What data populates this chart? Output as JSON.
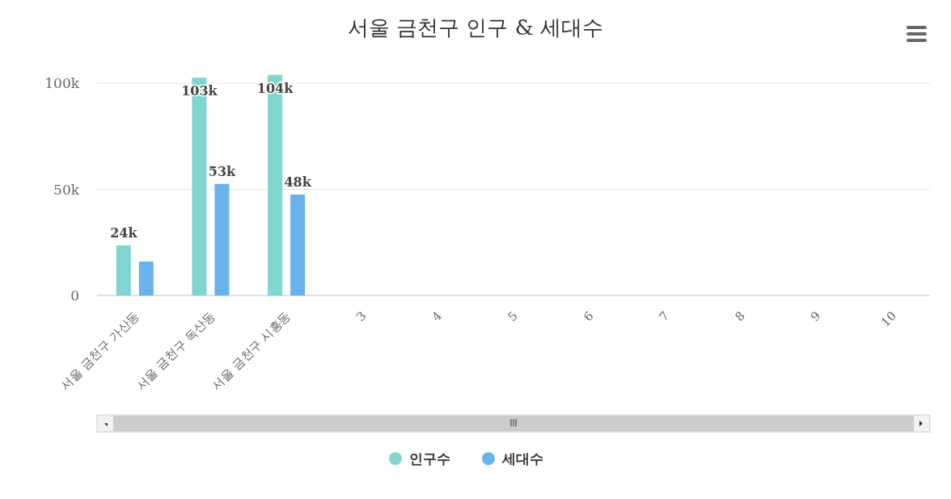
{
  "chart_data": {
    "type": "bar",
    "title": "서울 금천구 인구 & 세대수",
    "categories": [
      "서울 금천구 가산동",
      "서울 금천구 독산동",
      "서울 금천구 시흥동",
      "3",
      "4",
      "5",
      "6",
      "7",
      "8",
      "9",
      "10"
    ],
    "series": [
      {
        "name": "인구수",
        "color": "#80d6cf",
        "values": [
          23600,
          102600,
          104000,
          null,
          null,
          null,
          null,
          null,
          null,
          null,
          null
        ],
        "value_labels": [
          "24k",
          "103k",
          "104k",
          null,
          null,
          null,
          null,
          null,
          null,
          null,
          null
        ]
      },
      {
        "name": "세대수",
        "color": "#68b3ec",
        "values": [
          16000,
          52600,
          47600,
          null,
          null,
          null,
          null,
          null,
          null,
          null,
          null
        ],
        "value_labels": [
          null,
          "53k",
          "48k",
          null,
          null,
          null,
          null,
          null,
          null,
          null,
          null
        ]
      }
    ],
    "ylim": [
      0,
      105000
    ],
    "yticks": [
      0,
      {
        "value": 50000,
        "label": "50k"
      },
      {
        "value": 100000,
        "label": "100k"
      }
    ],
    "grid": "y",
    "legend": "bottom"
  }
}
